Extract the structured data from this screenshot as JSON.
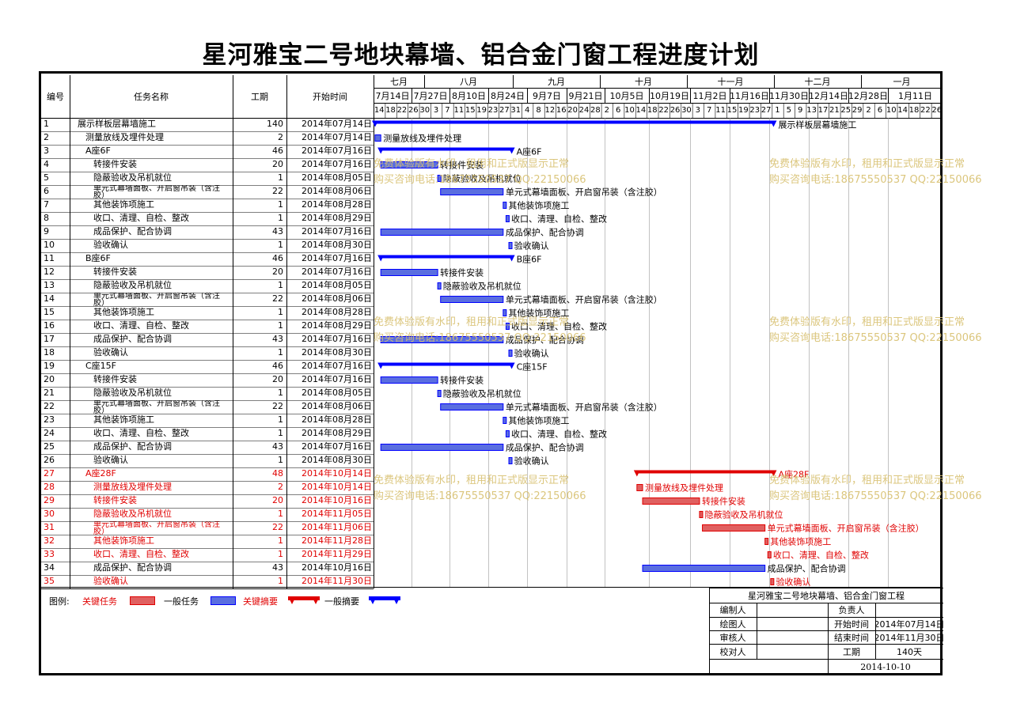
{
  "title": "星河雅宝二号地块幕墙、铝合金门窗工程进度计划",
  "columns": {
    "id": "编号",
    "name": "任务名称",
    "duration": "工期",
    "start": "开始时间"
  },
  "months": [
    "七月",
    "八月",
    "九月",
    "十月",
    "十一月",
    "十二月",
    "一月"
  ],
  "weeks": [
    "7月14日",
    "7月27日",
    "8月10日",
    "8月24日",
    "9月7日",
    "9月21日",
    "10月5日",
    "10月19日",
    "11月2日",
    "11月16日",
    "11月30日",
    "12月14日",
    "12月28日",
    "1月11日"
  ],
  "days": [
    "14",
    "18",
    "22",
    "26",
    "30",
    "3",
    "7",
    "11",
    "15",
    "19",
    "23",
    "27",
    "31",
    "4",
    "8",
    "12",
    "16",
    "20",
    "24",
    "28",
    "2",
    "6",
    "10",
    "14",
    "18",
    "22",
    "26",
    "30",
    "3",
    "7",
    "11",
    "15",
    "19",
    "23",
    "27",
    "1",
    "5",
    "9",
    "13",
    "17",
    "21",
    "25",
    "29",
    "2",
    "6",
    "10",
    "14",
    "18",
    "22",
    "26"
  ],
  "tasks": [
    {
      "id": "1",
      "name": "展示样板层幕墙施工",
      "dur": "140",
      "start": "2014年07月14日",
      "indent": 0,
      "red": false,
      "type": "summary",
      "s": 0,
      "d": 140,
      "label": "展示样板层幕墙施工"
    },
    {
      "id": "2",
      "name": "测量放线及埋件处理",
      "dur": "2",
      "start": "2014年07月14日",
      "indent": 1,
      "red": false,
      "type": "task",
      "s": 0,
      "d": 2,
      "label": "测量放线及埋件处理"
    },
    {
      "id": "3",
      "name": "A座6F",
      "dur": "46",
      "start": "2014年07月16日",
      "indent": 1,
      "red": false,
      "type": "summary",
      "s": 2,
      "d": 46,
      "label": "A座6F"
    },
    {
      "id": "4",
      "name": "转接件安装",
      "dur": "20",
      "start": "2014年07月16日",
      "indent": 2,
      "red": false,
      "type": "task",
      "s": 2,
      "d": 20,
      "label": "转接件安装"
    },
    {
      "id": "5",
      "name": "隐蔽验收及吊机就位",
      "dur": "1",
      "start": "2014年08月05日",
      "indent": 2,
      "red": false,
      "type": "task",
      "s": 22,
      "d": 1,
      "label": "隐蔽验收及吊机就位"
    },
    {
      "id": "6",
      "name": "单元式幕墙面板、开启窗吊装（含注胶）",
      "dur": "22",
      "start": "2014年08月06日",
      "indent": 2,
      "red": false,
      "type": "task",
      "s": 23,
      "d": 22,
      "label": "单元式幕墙面板、开启窗吊装（含注胶）"
    },
    {
      "id": "7",
      "name": "其他装饰项施工",
      "dur": "1",
      "start": "2014年08月28日",
      "indent": 2,
      "red": false,
      "type": "task",
      "s": 45,
      "d": 1,
      "label": "其他装饰项施工"
    },
    {
      "id": "8",
      "name": "收口、清理、自检、整改",
      "dur": "1",
      "start": "2014年08月29日",
      "indent": 2,
      "red": false,
      "type": "task",
      "s": 46,
      "d": 1,
      "label": "收口、清理、自检、整改"
    },
    {
      "id": "9",
      "name": "成品保护、配合协调",
      "dur": "43",
      "start": "2014年07月16日",
      "indent": 2,
      "red": false,
      "type": "task",
      "s": 2,
      "d": 43,
      "label": "成品保护、配合协调"
    },
    {
      "id": "10",
      "name": "验收确认",
      "dur": "1",
      "start": "2014年08月30日",
      "indent": 2,
      "red": false,
      "type": "task",
      "s": 47,
      "d": 1,
      "label": "验收确认"
    },
    {
      "id": "11",
      "name": "B座6F",
      "dur": "46",
      "start": "2014年07月16日",
      "indent": 1,
      "red": false,
      "type": "summary",
      "s": 2,
      "d": 46,
      "label": "B座6F"
    },
    {
      "id": "12",
      "name": "转接件安装",
      "dur": "20",
      "start": "2014年07月16日",
      "indent": 2,
      "red": false,
      "type": "task",
      "s": 2,
      "d": 20,
      "label": "转接件安装"
    },
    {
      "id": "13",
      "name": "隐蔽验收及吊机就位",
      "dur": "1",
      "start": "2014年08月05日",
      "indent": 2,
      "red": false,
      "type": "task",
      "s": 22,
      "d": 1,
      "label": "隐蔽验收及吊机就位"
    },
    {
      "id": "14",
      "name": "单元式幕墙面板、开启窗吊装（含注胶）",
      "dur": "22",
      "start": "2014年08月06日",
      "indent": 2,
      "red": false,
      "type": "task",
      "s": 23,
      "d": 22,
      "label": "单元式幕墙面板、开启窗吊装（含注胶）"
    },
    {
      "id": "15",
      "name": "其他装饰项施工",
      "dur": "1",
      "start": "2014年08月28日",
      "indent": 2,
      "red": false,
      "type": "task",
      "s": 45,
      "d": 1,
      "label": "其他装饰项施工"
    },
    {
      "id": "16",
      "name": "收口、清理、自检、整改",
      "dur": "1",
      "start": "2014年08月29日",
      "indent": 2,
      "red": false,
      "type": "task",
      "s": 46,
      "d": 1,
      "label": "收口、清理、自检、整改"
    },
    {
      "id": "17",
      "name": "成品保护、配合协调",
      "dur": "43",
      "start": "2014年07月16日",
      "indent": 2,
      "red": false,
      "type": "task",
      "s": 2,
      "d": 43,
      "label": "成品保护、配合协调"
    },
    {
      "id": "18",
      "name": "验收确认",
      "dur": "1",
      "start": "2014年08月30日",
      "indent": 2,
      "red": false,
      "type": "task",
      "s": 47,
      "d": 1,
      "label": "验收确认"
    },
    {
      "id": "19",
      "name": "C座15F",
      "dur": "46",
      "start": "2014年07月16日",
      "indent": 1,
      "red": false,
      "type": "summary",
      "s": 2,
      "d": 46,
      "label": "C座15F"
    },
    {
      "id": "20",
      "name": "转接件安装",
      "dur": "20",
      "start": "2014年07月16日",
      "indent": 2,
      "red": false,
      "type": "task",
      "s": 2,
      "d": 20,
      "label": "转接件安装"
    },
    {
      "id": "21",
      "name": "隐蔽验收及吊机就位",
      "dur": "1",
      "start": "2014年08月05日",
      "indent": 2,
      "red": false,
      "type": "task",
      "s": 22,
      "d": 1,
      "label": "隐蔽验收及吊机就位"
    },
    {
      "id": "22",
      "name": "单元式幕墙面板、开启窗吊装（含注胶）",
      "dur": "22",
      "start": "2014年08月06日",
      "indent": 2,
      "red": false,
      "type": "task",
      "s": 23,
      "d": 22,
      "label": "单元式幕墙面板、开启窗吊装（含注胶）"
    },
    {
      "id": "23",
      "name": "其他装饰项施工",
      "dur": "1",
      "start": "2014年08月28日",
      "indent": 2,
      "red": false,
      "type": "task",
      "s": 45,
      "d": 1,
      "label": "其他装饰项施工"
    },
    {
      "id": "24",
      "name": "收口、清理、自检、整改",
      "dur": "1",
      "start": "2014年08月29日",
      "indent": 2,
      "red": false,
      "type": "task",
      "s": 46,
      "d": 1,
      "label": "收口、清理、自检、整改"
    },
    {
      "id": "25",
      "name": "成品保护、配合协调",
      "dur": "43",
      "start": "2014年07月16日",
      "indent": 2,
      "red": false,
      "type": "task",
      "s": 2,
      "d": 43,
      "label": "成品保护、配合协调"
    },
    {
      "id": "26",
      "name": "验收确认",
      "dur": "1",
      "start": "2014年08月30日",
      "indent": 2,
      "red": false,
      "type": "task",
      "s": 47,
      "d": 1,
      "label": "验收确认"
    },
    {
      "id": "27",
      "name": "A座28F",
      "dur": "48",
      "start": "2014年10月14日",
      "indent": 1,
      "red": true,
      "type": "summary",
      "s": 92,
      "d": 48,
      "label": "A座28F"
    },
    {
      "id": "28",
      "name": "测量放线及埋件处理",
      "dur": "2",
      "start": "2014年10月14日",
      "indent": 2,
      "red": true,
      "type": "task",
      "s": 92,
      "d": 2,
      "label": "测量放线及埋件处理"
    },
    {
      "id": "29",
      "name": "转接件安装",
      "dur": "20",
      "start": "2014年10月16日",
      "indent": 2,
      "red": true,
      "type": "task",
      "s": 94,
      "d": 20,
      "label": "转接件安装"
    },
    {
      "id": "30",
      "name": "隐蔽验收及吊机就位",
      "dur": "1",
      "start": "2014年11月05日",
      "indent": 2,
      "red": true,
      "type": "task",
      "s": 114,
      "d": 1,
      "label": "隐蔽验收及吊机就位"
    },
    {
      "id": "31",
      "name": "单元式幕墙面板、开启窗吊装（含注胶）",
      "dur": "22",
      "start": "2014年11月06日",
      "indent": 2,
      "red": true,
      "type": "task",
      "s": 115,
      "d": 22,
      "label": "单元式幕墙面板、开启窗吊装（含注胶）"
    },
    {
      "id": "32",
      "name": "其他装饰项施工",
      "dur": "1",
      "start": "2014年11月28日",
      "indent": 2,
      "red": true,
      "type": "task",
      "s": 137,
      "d": 1,
      "label": "其他装饰项施工"
    },
    {
      "id": "33",
      "name": "收口、清理、自检、整改",
      "dur": "1",
      "start": "2014年11月29日",
      "indent": 2,
      "red": true,
      "type": "task",
      "s": 138,
      "d": 1,
      "label": "收口、清理、自检、整改"
    },
    {
      "id": "34",
      "name": "成品保护、配合协调",
      "dur": "43",
      "start": "2014年10月16日",
      "indent": 2,
      "red": false,
      "type": "task",
      "s": 94,
      "d": 43,
      "label": "成品保护、配合协调"
    },
    {
      "id": "35",
      "name": "验收确认",
      "dur": "1",
      "start": "2014年11月30日",
      "indent": 2,
      "red": true,
      "type": "task",
      "s": 139,
      "d": 1,
      "label": "验收确认"
    }
  ],
  "watermark": {
    "line1": "免费体验版有水印，租用和正式版显示正常",
    "line2": "购买咨询电话:18675550537 QQ:22150066"
  },
  "legend": {
    "label": "图例:",
    "critical_task": "关键任务",
    "normal_task": "一般任务",
    "critical_summary": "关键摘要",
    "normal_summary": "一般摘要"
  },
  "info": {
    "project": "星河雅宝二号地块幕墙、铝合金门窗工程",
    "editor_label": "编制人",
    "owner_label": "负责人",
    "drawer_label": "绘图人",
    "start_label": "开始时间",
    "start_value": "2014年07月14日",
    "reviewer_label": "审核人",
    "end_label": "结束时间",
    "end_value": "2014年11月30日",
    "checker_label": "校对人",
    "duration_label": "工期",
    "duration_value": "140天",
    "date": "2014-10-10"
  },
  "colors": {
    "normal": "#0000ff",
    "critical": "#e00000",
    "normal_fill": "#5a6ee0",
    "critical_fill": "#e06060"
  }
}
